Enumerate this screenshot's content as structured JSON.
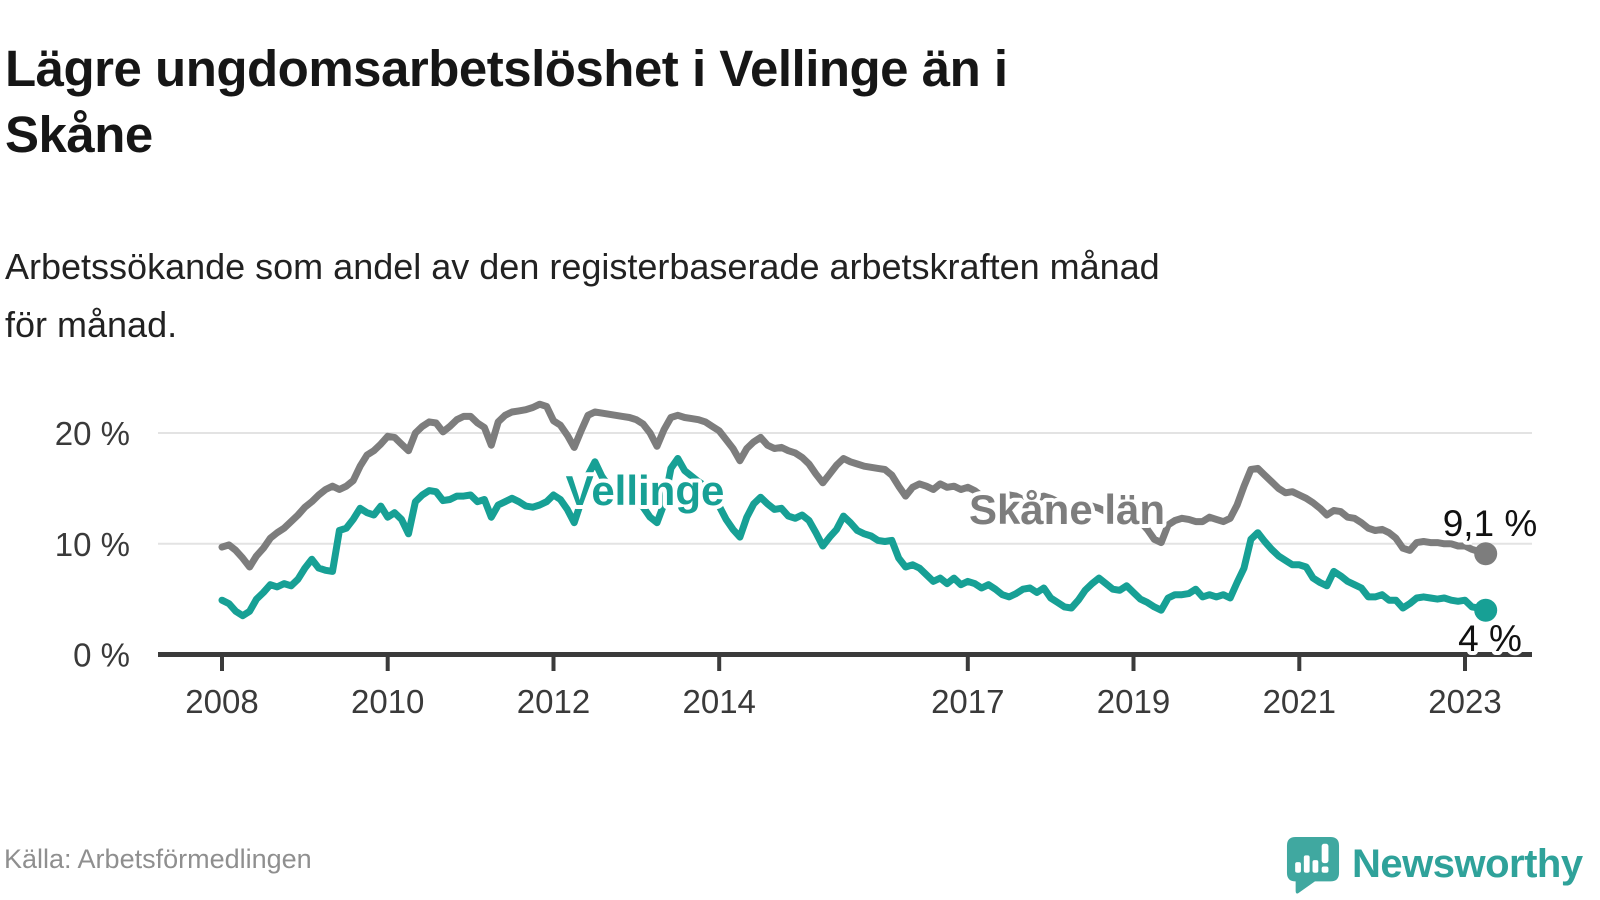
{
  "header": {
    "title_line1": "Lägre ungdomsarbetslöshet i Vellinge än i",
    "title_line2": "Skåne",
    "subtitle_line1": "Arbetssökande som andel av den registerbaserade arbetskraften månad",
    "subtitle_line2": "för månad."
  },
  "chart_data": {
    "type": "line",
    "title": "Lägre ungdomsarbetslöshet i Vellinge än i Skåne",
    "subtitle": "Arbetssökande som andel av den registerbaserade arbetskraften månad för månad.",
    "unit": "%",
    "x_interval": "monthly",
    "x_start": "2008-01",
    "x_end": "2023-04",
    "grid": "horizontal",
    "ylim": [
      0,
      23
    ],
    "x_tick_years": [
      2008,
      2010,
      2012,
      2014,
      2017,
      2019,
      2021,
      2023
    ],
    "x_tick_labels": [
      "2008",
      "2010",
      "2012",
      "2014",
      "2017",
      "2019",
      "2021",
      "2023"
    ],
    "y_ticks": [
      {
        "value": 0,
        "label": "0 %"
      },
      {
        "value": 10,
        "label": "10 %"
      },
      {
        "value": 20,
        "label": "20 %"
      }
    ],
    "series": [
      {
        "name": "Skåne län",
        "color": "#7d7d7d",
        "end_label": "9,1 %",
        "end_value": 9.1,
        "values": [
          9.7,
          9.9,
          9.4,
          8.7,
          7.9,
          8.9,
          9.6,
          10.5,
          11.0,
          11.4,
          12.0,
          12.6,
          13.3,
          13.8,
          14.4,
          14.9,
          15.2,
          14.9,
          15.2,
          15.7,
          17.0,
          18.0,
          18.4,
          19.0,
          19.7,
          19.6,
          19.0,
          18.4,
          20.0,
          20.6,
          21.0,
          20.9,
          20.1,
          20.6,
          21.2,
          21.5,
          21.5,
          20.9,
          20.5,
          18.9,
          21.0,
          21.6,
          21.9,
          22.0,
          22.1,
          22.3,
          22.6,
          22.4,
          21.1,
          20.7,
          19.8,
          18.7,
          20.2,
          21.6,
          21.9,
          21.8,
          21.7,
          21.6,
          21.5,
          21.4,
          21.2,
          20.8,
          20.0,
          18.8,
          20.3,
          21.4,
          21.6,
          21.4,
          21.3,
          21.2,
          21.0,
          20.6,
          20.2,
          19.4,
          18.6,
          17.5,
          18.6,
          19.2,
          19.6,
          18.9,
          18.6,
          18.7,
          18.4,
          18.2,
          17.8,
          17.2,
          16.3,
          15.5,
          16.3,
          17.1,
          17.7,
          17.4,
          17.2,
          17.0,
          16.9,
          16.8,
          16.7,
          16.2,
          15.2,
          14.3,
          15.1,
          15.4,
          15.2,
          14.9,
          15.4,
          15.1,
          15.2,
          14.9,
          15.1,
          14.8,
          14.3,
          13.6,
          13.9,
          14.2,
          14.4,
          14.3,
          14.0,
          13.9,
          14.1,
          14.3,
          14.1,
          13.8,
          13.3,
          12.7,
          12.9,
          13.2,
          13.4,
          13.2,
          12.9,
          12.7,
          12.6,
          12.5,
          12.3,
          12.0,
          11.3,
          10.4,
          10.1,
          11.7,
          12.1,
          12.3,
          12.2,
          12.0,
          12.0,
          12.4,
          12.2,
          12.0,
          12.3,
          13.5,
          15.2,
          16.7,
          16.8,
          16.2,
          15.6,
          15.0,
          14.6,
          14.7,
          14.4,
          14.1,
          13.7,
          13.2,
          12.6,
          13.0,
          12.9,
          12.4,
          12.3,
          11.9,
          11.4,
          11.2,
          11.3,
          11.0,
          10.5,
          9.6,
          9.4,
          10.1,
          10.2,
          10.1,
          10.1,
          10.0,
          10.0,
          9.8,
          9.8,
          9.5,
          9.3,
          9.1
        ]
      },
      {
        "name": "Vellinge",
        "color": "#17a095",
        "end_label": "4 %",
        "end_value": 4.0,
        "values": [
          4.9,
          4.6,
          3.9,
          3.5,
          3.9,
          5.0,
          5.6,
          6.3,
          6.1,
          6.4,
          6.2,
          6.8,
          7.8,
          8.6,
          7.8,
          7.6,
          7.5,
          11.2,
          11.4,
          12.2,
          13.2,
          12.8,
          12.6,
          13.4,
          12.4,
          12.8,
          12.2,
          10.9,
          13.8,
          14.4,
          14.8,
          14.7,
          13.9,
          14.0,
          14.3,
          14.3,
          14.4,
          13.8,
          14.0,
          12.4,
          13.5,
          13.8,
          14.1,
          13.8,
          13.4,
          13.3,
          13.5,
          13.8,
          14.4,
          14.0,
          13.1,
          11.9,
          13.8,
          16.2,
          17.4,
          16.1,
          15.2,
          14.6,
          14.2,
          14.0,
          13.8,
          13.3,
          12.4,
          11.9,
          13.6,
          16.8,
          17.7,
          16.6,
          16.1,
          15.6,
          15.2,
          14.4,
          13.4,
          12.2,
          11.3,
          10.6,
          12.4,
          13.6,
          14.2,
          13.6,
          13.1,
          13.2,
          12.5,
          12.3,
          12.6,
          12.1,
          11.0,
          9.8,
          10.6,
          11.3,
          12.5,
          11.9,
          11.2,
          10.9,
          10.7,
          10.3,
          10.2,
          10.3,
          8.7,
          7.9,
          8.1,
          7.8,
          7.2,
          6.6,
          6.9,
          6.4,
          6.9,
          6.3,
          6.6,
          6.4,
          6.0,
          6.3,
          5.9,
          5.4,
          5.2,
          5.5,
          5.9,
          6.0,
          5.6,
          6.0,
          5.1,
          4.7,
          4.3,
          4.2,
          4.9,
          5.8,
          6.4,
          6.9,
          6.4,
          5.9,
          5.8,
          6.2,
          5.6,
          5.0,
          4.7,
          4.3,
          4.0,
          5.1,
          5.4,
          5.4,
          5.5,
          5.9,
          5.2,
          5.4,
          5.2,
          5.4,
          5.1,
          6.5,
          7.8,
          10.4,
          11.0,
          10.2,
          9.5,
          8.9,
          8.5,
          8.1,
          8.1,
          7.9,
          6.9,
          6.5,
          6.2,
          7.5,
          7.1,
          6.6,
          6.3,
          6.0,
          5.2,
          5.2,
          5.4,
          4.9,
          4.9,
          4.2,
          4.6,
          5.1,
          5.2,
          5.1,
          5.0,
          5.1,
          4.9,
          4.8,
          4.9,
          4.3,
          4.2,
          4.0
        ]
      }
    ]
  },
  "footer": {
    "source": "Källa: Arbetsförmedlingen",
    "logo_text": "Newsworthy"
  },
  "colors": {
    "vellinge": "#17a095",
    "skane": "#7d7d7d",
    "grid": "#e3e3e3",
    "axis": "#3b3b3b",
    "axis_text": "#3a3a3a",
    "end_label_text": "#111111",
    "logo_icon": "#40a8a0",
    "logo_word": "#2fa29a"
  }
}
